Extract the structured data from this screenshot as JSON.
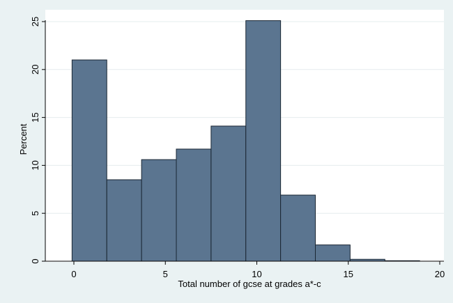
{
  "chart_data": {
    "type": "bar",
    "title": "",
    "xlabel": "Total number of gcse at grades a*-c",
    "ylabel": "Percent",
    "xlim": [
      0,
      20
    ],
    "ylim": [
      0,
      25
    ],
    "xticks": [
      0,
      5,
      10,
      15,
      20
    ],
    "yticks": [
      0,
      5,
      10,
      15,
      20,
      25
    ],
    "grid": true,
    "legend": "none",
    "bar_color": "#5b7590",
    "bar_edge_color": "#1a2633",
    "bins": [
      {
        "start": -0.1,
        "end": 1.8,
        "value": 21.0
      },
      {
        "start": 1.8,
        "end": 3.7,
        "value": 8.5
      },
      {
        "start": 3.7,
        "end": 5.6,
        "value": 10.6
      },
      {
        "start": 5.6,
        "end": 7.5,
        "value": 11.7
      },
      {
        "start": 7.5,
        "end": 9.4,
        "value": 14.1
      },
      {
        "start": 9.4,
        "end": 11.3,
        "value": 25.1
      },
      {
        "start": 11.3,
        "end": 13.2,
        "value": 6.9
      },
      {
        "start": 13.2,
        "end": 15.1,
        "value": 1.7
      },
      {
        "start": 15.1,
        "end": 17.0,
        "value": 0.2
      },
      {
        "start": 17.0,
        "end": 18.9,
        "value": 0.05
      }
    ]
  }
}
